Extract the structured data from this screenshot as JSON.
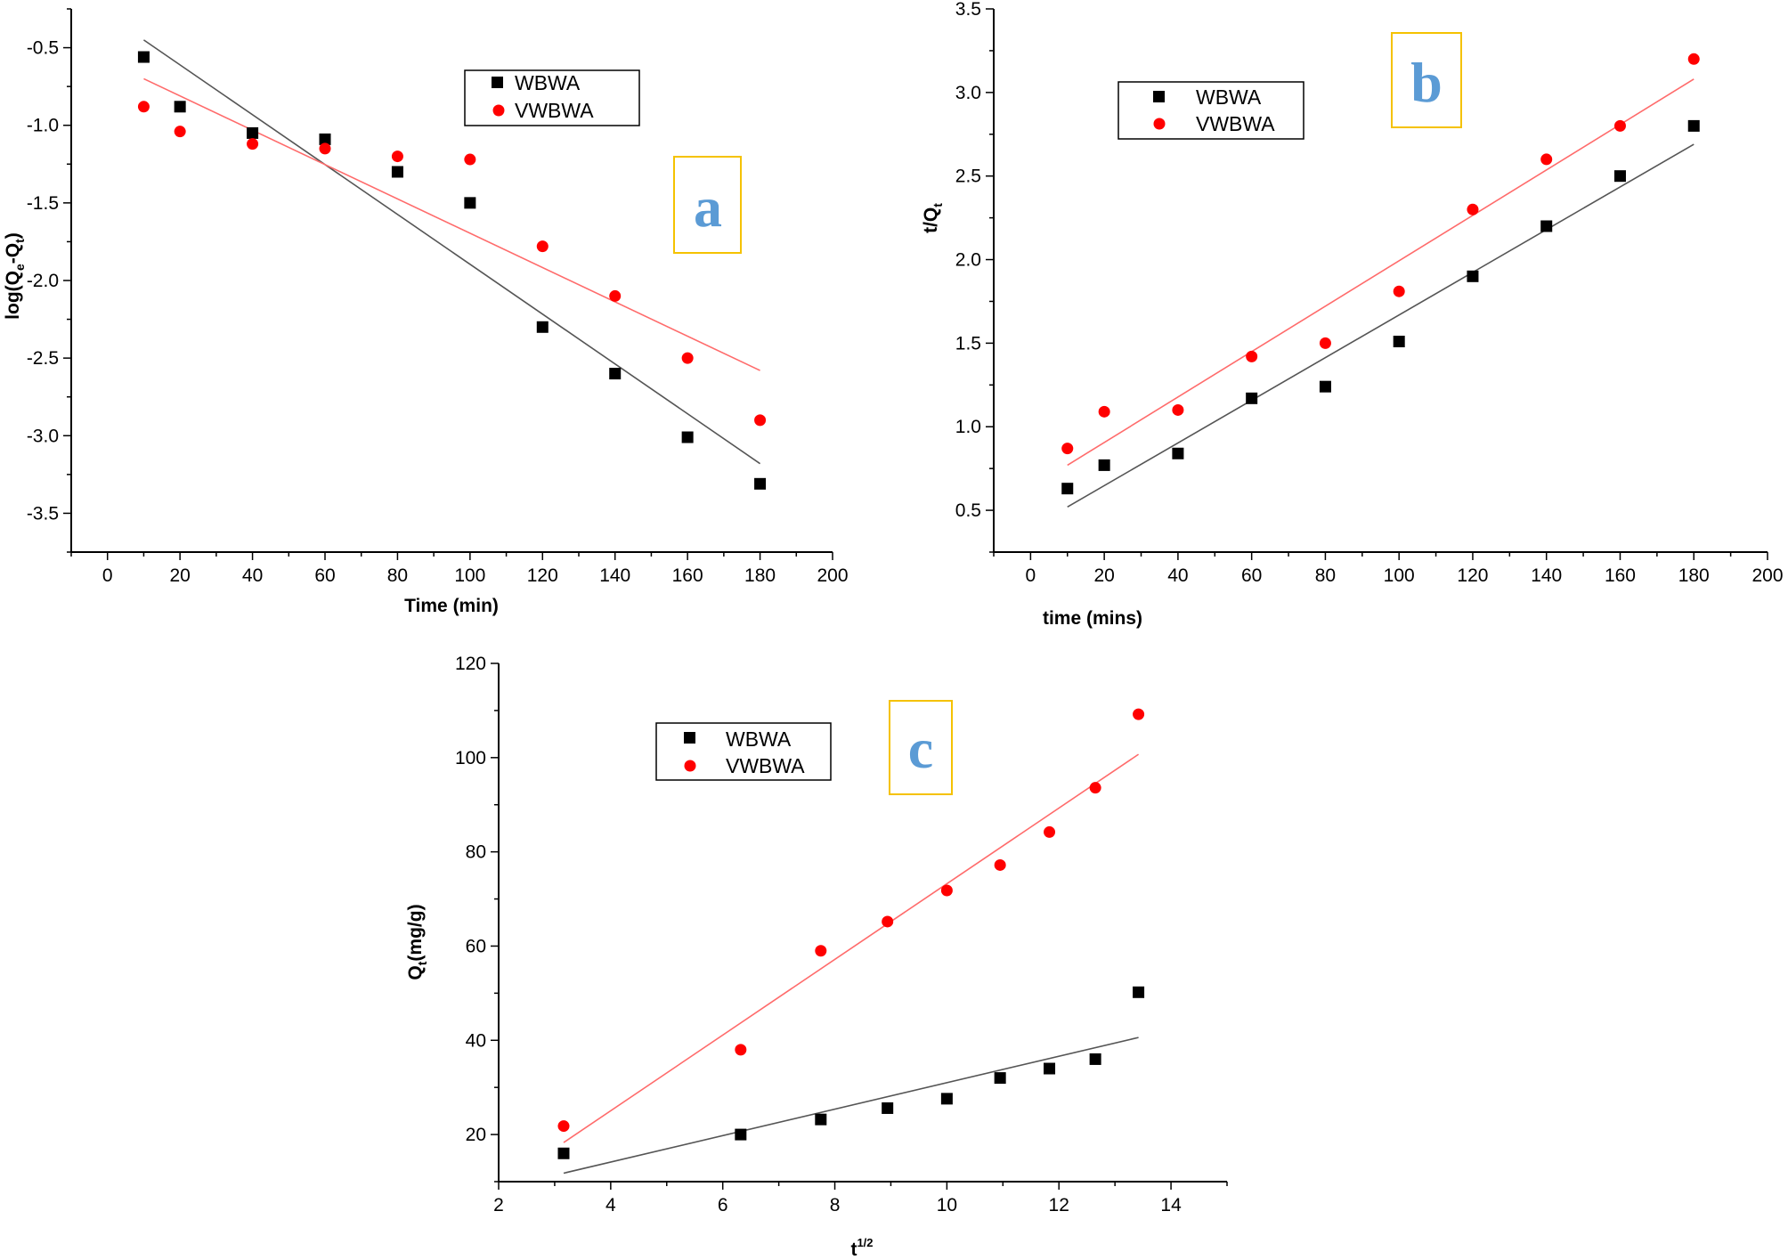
{
  "colors": {
    "series1": "#000000",
    "series2": "#ff0000",
    "fit1": "#555555",
    "fit2": "#ff6b6b",
    "label_box": "#f5c200",
    "label_text": "#5b9bd5"
  },
  "chart_data": [
    {
      "panel": "a",
      "type": "scatter",
      "xlabel": "Time (min)",
      "ylabel": "log(Qe-Qt)",
      "ylabel_parts": {
        "main": "log(Q",
        "sub1": "e",
        "mid": "-Q",
        "sub2": "t",
        "end": ")"
      },
      "xlim": [
        -10,
        200
      ],
      "ylim": [
        -3.75,
        -0.25
      ],
      "x_ticks": [
        0,
        20,
        40,
        60,
        80,
        100,
        120,
        140,
        160,
        180,
        200
      ],
      "x_tick_labels": [
        "0",
        "20",
        "40",
        "60",
        "80",
        "100",
        "120",
        "140",
        "160",
        "180",
        "200"
      ],
      "y_ticks": [
        -0.5,
        -1.0,
        -1.5,
        -2.0,
        -2.5,
        -3.0,
        -3.5
      ],
      "y_tick_labels": [
        "-0.5",
        "-1.0",
        "-1.5",
        "-2.0",
        "-2.5",
        "-3.0",
        "-3.5"
      ],
      "legend": [
        "WBWA",
        "VWBWA"
      ],
      "series": [
        {
          "name": "WBWA",
          "x": [
            10,
            20,
            40,
            60,
            80,
            100,
            120,
            140,
            160,
            180
          ],
          "y": [
            -0.56,
            -0.88,
            -1.05,
            -1.09,
            -1.3,
            -1.5,
            -2.3,
            -2.6,
            -3.01,
            -3.31
          ],
          "fit": [
            [
              10,
              -0.45
            ],
            [
              180,
              -3.18
            ]
          ]
        },
        {
          "name": "VWBWA",
          "x": [
            10,
            20,
            40,
            60,
            80,
            100,
            120,
            140,
            160,
            180
          ],
          "y": [
            -0.88,
            -1.04,
            -1.12,
            -1.15,
            -1.2,
            -1.22,
            -1.78,
            -2.1,
            -2.5,
            -2.9
          ],
          "fit": [
            [
              10,
              -0.7
            ],
            [
              180,
              -2.58
            ]
          ]
        }
      ]
    },
    {
      "panel": "b",
      "type": "scatter",
      "xlabel": "time (mins)",
      "ylabel": "t/Qt",
      "ylabel_parts": {
        "main": "t/Q",
        "sub1": "t",
        "mid": "",
        "sub2": "",
        "end": ""
      },
      "xlim": [
        -10,
        200
      ],
      "ylim": [
        0.25,
        3.5
      ],
      "x_ticks": [
        0,
        20,
        40,
        60,
        80,
        100,
        120,
        140,
        160,
        180,
        200
      ],
      "x_tick_labels": [
        "0",
        "20",
        "40",
        "60",
        "80",
        "100",
        "120",
        "140",
        "160",
        "180",
        "200"
      ],
      "y_ticks": [
        0.5,
        1.0,
        1.5,
        2.0,
        2.5,
        3.0,
        3.5
      ],
      "y_tick_labels": [
        "0.5",
        "1.0",
        "1.5",
        "2.0",
        "2.5",
        "3.0",
        "3.5"
      ],
      "legend": [
        "WBWA",
        "VWBWA"
      ],
      "series": [
        {
          "name": "WBWA",
          "x": [
            10,
            20,
            40,
            60,
            80,
            100,
            120,
            140,
            160,
            180
          ],
          "y": [
            0.63,
            0.77,
            0.84,
            1.17,
            1.24,
            1.51,
            1.9,
            2.2,
            2.5,
            2.8
          ],
          "fit": [
            [
              10,
              0.52
            ],
            [
              180,
              2.69
            ]
          ]
        },
        {
          "name": "VWBWA",
          "x": [
            10,
            20,
            40,
            60,
            80,
            100,
            120,
            140,
            160,
            180
          ],
          "y": [
            0.87,
            1.09,
            1.1,
            1.42,
            1.5,
            1.81,
            2.3,
            2.6,
            2.8,
            3.2
          ],
          "fit": [
            [
              10,
              0.77
            ],
            [
              180,
              3.08
            ]
          ]
        }
      ]
    },
    {
      "panel": "c",
      "type": "scatter",
      "xlabel": "t1/2",
      "xlabel_parts": {
        "main": "t",
        "sup": "1/2"
      },
      "ylabel": "Qt(mg/g)",
      "ylabel_parts": {
        "main": "Q",
        "sub1": "t",
        "mid": "(mg/g)",
        "sub2": "",
        "end": ""
      },
      "xlim": [
        2,
        15
      ],
      "ylim": [
        10,
        120
      ],
      "x_ticks": [
        2,
        4,
        6,
        8,
        10,
        12,
        14
      ],
      "x_tick_labels": [
        "2",
        "4",
        "6",
        "8",
        "10",
        "12",
        "14"
      ],
      "y_ticks": [
        20,
        40,
        60,
        80,
        100,
        120
      ],
      "y_tick_labels": [
        "20",
        "40",
        "60",
        "80",
        "100",
        "120"
      ],
      "legend": [
        "WBWA",
        "VWBWA"
      ],
      "series": [
        {
          "name": "WBWA",
          "x": [
            3.16,
            6.32,
            7.75,
            8.94,
            10.0,
            10.95,
            11.83,
            12.65,
            13.42
          ],
          "y": [
            16.0,
            20.0,
            23.2,
            25.6,
            27.6,
            32.0,
            34.0,
            36.0,
            50.2
          ],
          "fit": [
            [
              3.16,
              11.8
            ],
            [
              13.42,
              40.6
            ]
          ]
        },
        {
          "name": "VWBWA",
          "x": [
            3.16,
            6.32,
            7.75,
            8.94,
            10.0,
            10.95,
            11.83,
            12.65,
            13.42
          ],
          "y": [
            21.8,
            38.0,
            59.0,
            65.2,
            71.8,
            77.2,
            84.2,
            93.6,
            109.2
          ],
          "fit": [
            [
              3.16,
              18.3
            ],
            [
              13.42,
              100.7
            ]
          ]
        }
      ]
    }
  ],
  "panel_labels": [
    "a",
    "b",
    "c"
  ]
}
